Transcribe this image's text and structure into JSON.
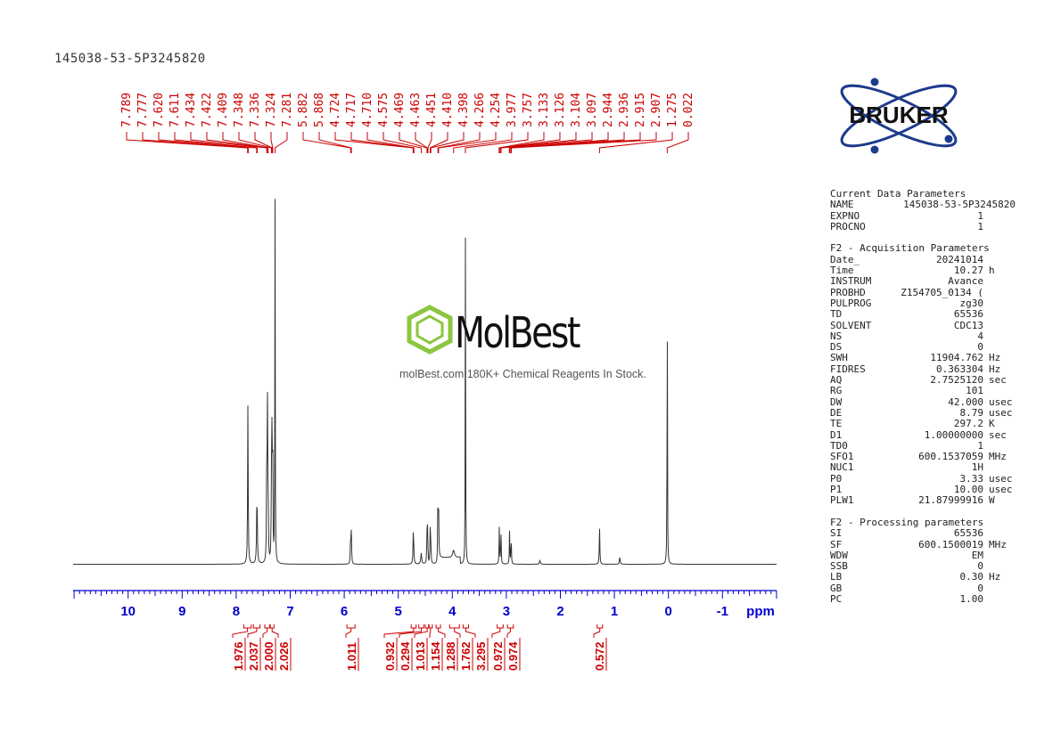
{
  "sample_title": "145038-53-5P3245820",
  "logo_text": "BRUKER",
  "watermark": {
    "name": "MolBest",
    "tagline": "molBest.com,180K+ Chemical Reagents In Stock."
  },
  "colors": {
    "axis": "#0000cc",
    "annotation": "#cc0000",
    "spectrum": "#333333"
  },
  "parameters": {
    "current": {
      "title": "Current Data Parameters",
      "rows": [
        {
          "key": "NAME",
          "value": "145038-53-5P3245820",
          "unit": ""
        },
        {
          "key": "EXPNO",
          "value": "1",
          "unit": ""
        },
        {
          "key": "PROCNO",
          "value": "1",
          "unit": ""
        }
      ]
    },
    "acquisition": {
      "title": "F2 - Acquisition Parameters",
      "rows": [
        {
          "key": "Date_",
          "value": "20241014",
          "unit": ""
        },
        {
          "key": "Time",
          "value": "10.27",
          "unit": "h"
        },
        {
          "key": "INSTRUM",
          "value": "Avance",
          "unit": ""
        },
        {
          "key": "PROBHD",
          "value": "Z154705_0134 (",
          "unit": ""
        },
        {
          "key": "PULPROG",
          "value": "zg30",
          "unit": ""
        },
        {
          "key": "TD",
          "value": "65536",
          "unit": ""
        },
        {
          "key": "SOLVENT",
          "value": "CDC13",
          "unit": ""
        },
        {
          "key": "NS",
          "value": "4",
          "unit": ""
        },
        {
          "key": "DS",
          "value": "0",
          "unit": ""
        },
        {
          "key": "SWH",
          "value": "11904.762",
          "unit": "Hz"
        },
        {
          "key": "FIDRES",
          "value": "0.363304",
          "unit": "Hz"
        },
        {
          "key": "AQ",
          "value": "2.7525120",
          "unit": "sec"
        },
        {
          "key": "RG",
          "value": "101",
          "unit": ""
        },
        {
          "key": "DW",
          "value": "42.000",
          "unit": "usec"
        },
        {
          "key": "DE",
          "value": "8.79",
          "unit": "usec"
        },
        {
          "key": "TE",
          "value": "297.2",
          "unit": "K"
        },
        {
          "key": "D1",
          "value": "1.00000000",
          "unit": "sec"
        },
        {
          "key": "TD0",
          "value": "1",
          "unit": ""
        },
        {
          "key": "SFO1",
          "value": "600.1537059",
          "unit": "MHz"
        },
        {
          "key": "NUC1",
          "value": "1H",
          "unit": ""
        },
        {
          "key": "P0",
          "value": "3.33",
          "unit": "usec"
        },
        {
          "key": "P1",
          "value": "10.00",
          "unit": "usec"
        },
        {
          "key": "PLW1",
          "value": "21.87999916",
          "unit": "W"
        }
      ]
    },
    "processing": {
      "title": "F2 - Processing parameters",
      "rows": [
        {
          "key": "SI",
          "value": "65536",
          "unit": ""
        },
        {
          "key": "SF",
          "value": "600.1500019",
          "unit": "MHz"
        },
        {
          "key": "WDW",
          "value": "EM",
          "unit": ""
        },
        {
          "key": "SSB",
          "value": "0",
          "unit": ""
        },
        {
          "key": "LB",
          "value": "0.30",
          "unit": "Hz"
        },
        {
          "key": "GB",
          "value": "0",
          "unit": ""
        },
        {
          "key": "PC",
          "value": "1.00",
          "unit": ""
        }
      ]
    }
  },
  "chart_data": {
    "type": "line",
    "xlabel": "ppm",
    "x_reversed": true,
    "xlim": [
      11.0,
      -2.0
    ],
    "tick_labels": [
      "10",
      "9",
      "8",
      "7",
      "6",
      "5",
      "4",
      "3",
      "2",
      "1",
      "0",
      "-1"
    ],
    "tick_values": [
      10,
      9,
      8,
      7,
      6,
      5,
      4,
      3,
      2,
      1,
      0,
      -1
    ],
    "peak_labels": [
      "7.789",
      "7.777",
      "7.620",
      "7.611",
      "7.434",
      "7.422",
      "7.409",
      "7.348",
      "7.336",
      "7.324",
      "7.281",
      "5.882",
      "5.868",
      "4.724",
      "4.717",
      "4.710",
      "4.575",
      "4.469",
      "4.463",
      "4.451",
      "4.410",
      "4.398",
      "4.266",
      "4.254",
      "3.977",
      "3.757",
      "3.133",
      "3.126",
      "3.104",
      "3.097",
      "2.944",
      "2.936",
      "2.915",
      "2.907",
      "1.275",
      "0.022"
    ],
    "peaks": [
      {
        "ppm": 7.783,
        "intensity": 0.44,
        "width": 0.006
      },
      {
        "ppm": 7.615,
        "intensity": 0.19,
        "width": 0.008
      },
      {
        "ppm": 7.434,
        "intensity": 0.3,
        "width": 0.005
      },
      {
        "ppm": 7.422,
        "intensity": 0.42,
        "width": 0.005
      },
      {
        "ppm": 7.409,
        "intensity": 0.2,
        "width": 0.005
      },
      {
        "ppm": 7.348,
        "intensity": 0.22,
        "width": 0.005
      },
      {
        "ppm": 7.336,
        "intensity": 0.38,
        "width": 0.005
      },
      {
        "ppm": 7.324,
        "intensity": 0.3,
        "width": 0.005
      },
      {
        "ppm": 7.281,
        "intensity": 1.0,
        "width": 0.004
      },
      {
        "ppm": 5.882,
        "intensity": 0.09,
        "width": 0.005
      },
      {
        "ppm": 5.868,
        "intensity": 0.09,
        "width": 0.005
      },
      {
        "ppm": 4.72,
        "intensity": 0.1,
        "width": 0.007
      },
      {
        "ppm": 4.575,
        "intensity": 0.03,
        "width": 0.01
      },
      {
        "ppm": 4.469,
        "intensity": 0.09,
        "width": 0.005
      },
      {
        "ppm": 4.457,
        "intensity": 0.1,
        "width": 0.005
      },
      {
        "ppm": 4.41,
        "intensity": 0.09,
        "width": 0.005
      },
      {
        "ppm": 4.398,
        "intensity": 0.07,
        "width": 0.005
      },
      {
        "ppm": 4.266,
        "intensity": 0.19,
        "width": 0.005
      },
      {
        "ppm": 4.254,
        "intensity": 0.14,
        "width": 0.005
      },
      {
        "ppm": 3.977,
        "intensity": 0.02,
        "width": 0.02
      },
      {
        "ppm": 3.757,
        "intensity": 0.9,
        "width": 0.004
      },
      {
        "ppm": 3.13,
        "intensity": 0.1,
        "width": 0.005
      },
      {
        "ppm": 3.1,
        "intensity": 0.1,
        "width": 0.005
      },
      {
        "ppm": 2.94,
        "intensity": 0.09,
        "width": 0.005
      },
      {
        "ppm": 2.911,
        "intensity": 0.08,
        "width": 0.005
      },
      {
        "ppm": 2.38,
        "intensity": 0.01,
        "width": 0.01
      },
      {
        "ppm": 1.275,
        "intensity": 0.1,
        "width": 0.006
      },
      {
        "ppm": 0.9,
        "intensity": 0.02,
        "width": 0.008
      },
      {
        "ppm": 0.022,
        "intensity": 0.79,
        "width": 0.004
      }
    ],
    "integrals": [
      {
        "label": "1.976",
        "from": 7.86,
        "to": 7.72
      },
      {
        "label": "2.037",
        "from": 7.68,
        "to": 7.56
      },
      {
        "label": "2.000",
        "from": 7.47,
        "to": 7.38
      },
      {
        "label": "2.026",
        "from": 7.37,
        "to": 7.3
      },
      {
        "label": "1.011",
        "from": 5.95,
        "to": 5.8
      },
      {
        "label": "0.932",
        "from": 4.76,
        "to": 4.67
      },
      {
        "label": "0.294",
        "from": 4.62,
        "to": 4.53
      },
      {
        "label": "1.013",
        "from": 4.5,
        "to": 4.43
      },
      {
        "label": "1.154",
        "from": 4.44,
        "to": 4.37
      },
      {
        "label": "1.288",
        "from": 4.3,
        "to": 4.22
      },
      {
        "label": "1.762",
        "from": 4.05,
        "to": 3.87
      },
      {
        "label": "3.295",
        "from": 3.8,
        "to": 3.7
      },
      {
        "label": "0.972",
        "from": 3.17,
        "to": 3.06
      },
      {
        "label": "0.974",
        "from": 2.98,
        "to": 2.87
      },
      {
        "label": "0.572",
        "from": 1.32,
        "to": 1.22
      }
    ]
  }
}
